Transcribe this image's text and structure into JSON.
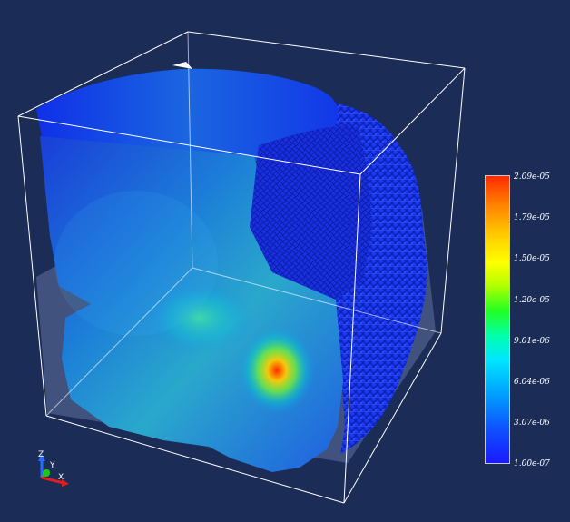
{
  "viewer": {
    "background_color": "#1b2c56",
    "bounding_box_color": "#ffffff"
  },
  "colorbar": {
    "ticks": [
      "2.09e-05",
      "1.79e-05",
      "1.50e-05",
      "1.20e-05",
      "9.01e-06",
      "6.04e-06",
      "3.07e-06",
      "1.00e-07"
    ],
    "color_map": [
      "#1a1aff",
      "#00a0ff",
      "#00e6ff",
      "#22ff22",
      "#ffff00",
      "#ff8200",
      "#ff2a00"
    ]
  },
  "axes_triad": {
    "z_label": "Z",
    "y_label": "Y",
    "x_label": "X",
    "z_color": "#2a6bff",
    "y_color": "#22c422",
    "x_color": "#e01e1e"
  }
}
